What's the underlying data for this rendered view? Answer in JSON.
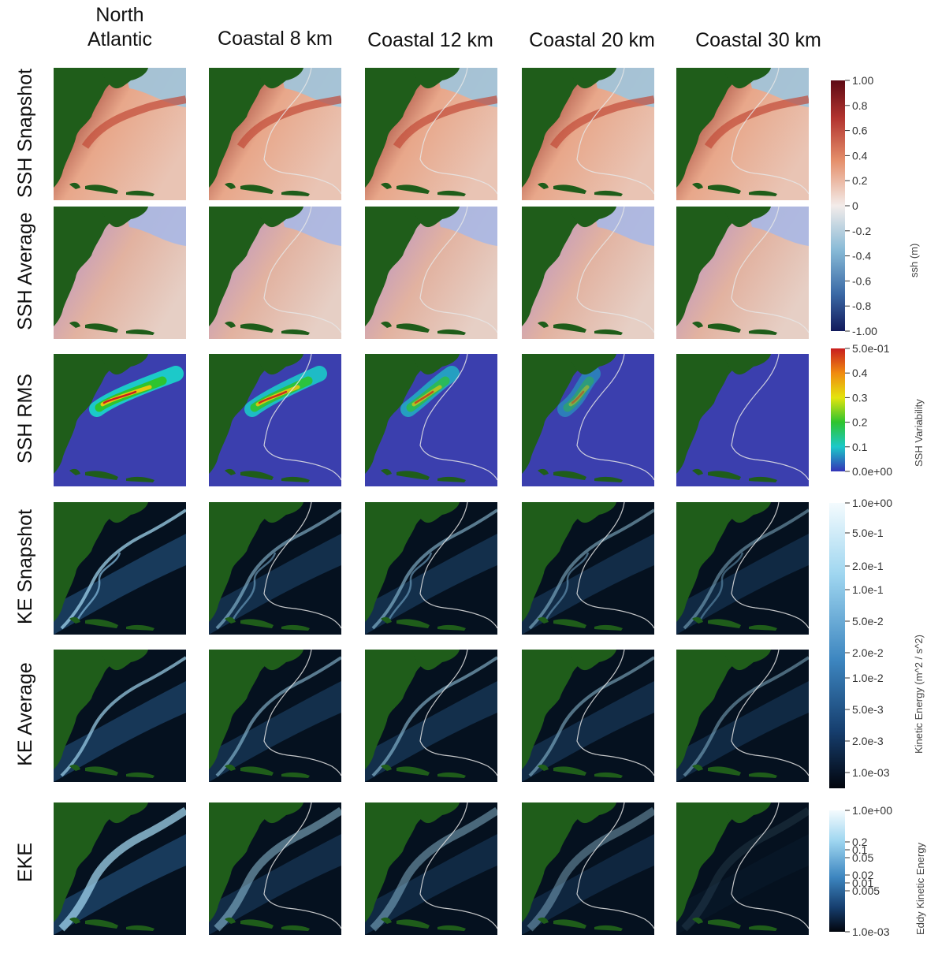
{
  "column_headers": [
    "North\nAtlantic",
    "Coastal 8 km",
    "Coastal 12 km",
    "Coastal 20 km",
    "Coastal 30 km"
  ],
  "row_headers": [
    "SSH Snapshot",
    "SSH Average",
    "SSH RMS",
    "KE Snapshot",
    "KE Average",
    "EKE"
  ],
  "colorbars": {
    "ssh": {
      "title": "ssh (m)",
      "ticks": [
        "1.00",
        "0.8",
        "0.6",
        "0.4",
        "0.2",
        "0",
        "-0.2",
        "-0.4",
        "-0.6",
        "-0.8",
        "-1.00"
      ]
    },
    "rms": {
      "title": "SSH Variability",
      "ticks": [
        "5.0e-01",
        "0.4",
        "0.3",
        "0.2",
        "0.1",
        "0.0e+00"
      ]
    },
    "ke": {
      "title": "Kinetic Energy (m^2 / s^2)",
      "ticks": [
        "1.0e+00",
        "5.0e-1",
        "2.0e-1",
        "1.0e-1",
        "5.0e-2",
        "2.0e-2",
        "1.0e-2",
        "5.0e-3",
        "2.0e-3",
        "1.0e-03"
      ]
    },
    "eke": {
      "title": "Eddy Kinetic Energy",
      "ticks": [
        "1.0e+00",
        "0.2",
        "0.1",
        "0.05",
        "0.02",
        "0.01",
        "0.005",
        "1.0e-03"
      ]
    }
  },
  "colors": {
    "land": "#1f5d1a",
    "boundary": "#e6e6e6"
  }
}
